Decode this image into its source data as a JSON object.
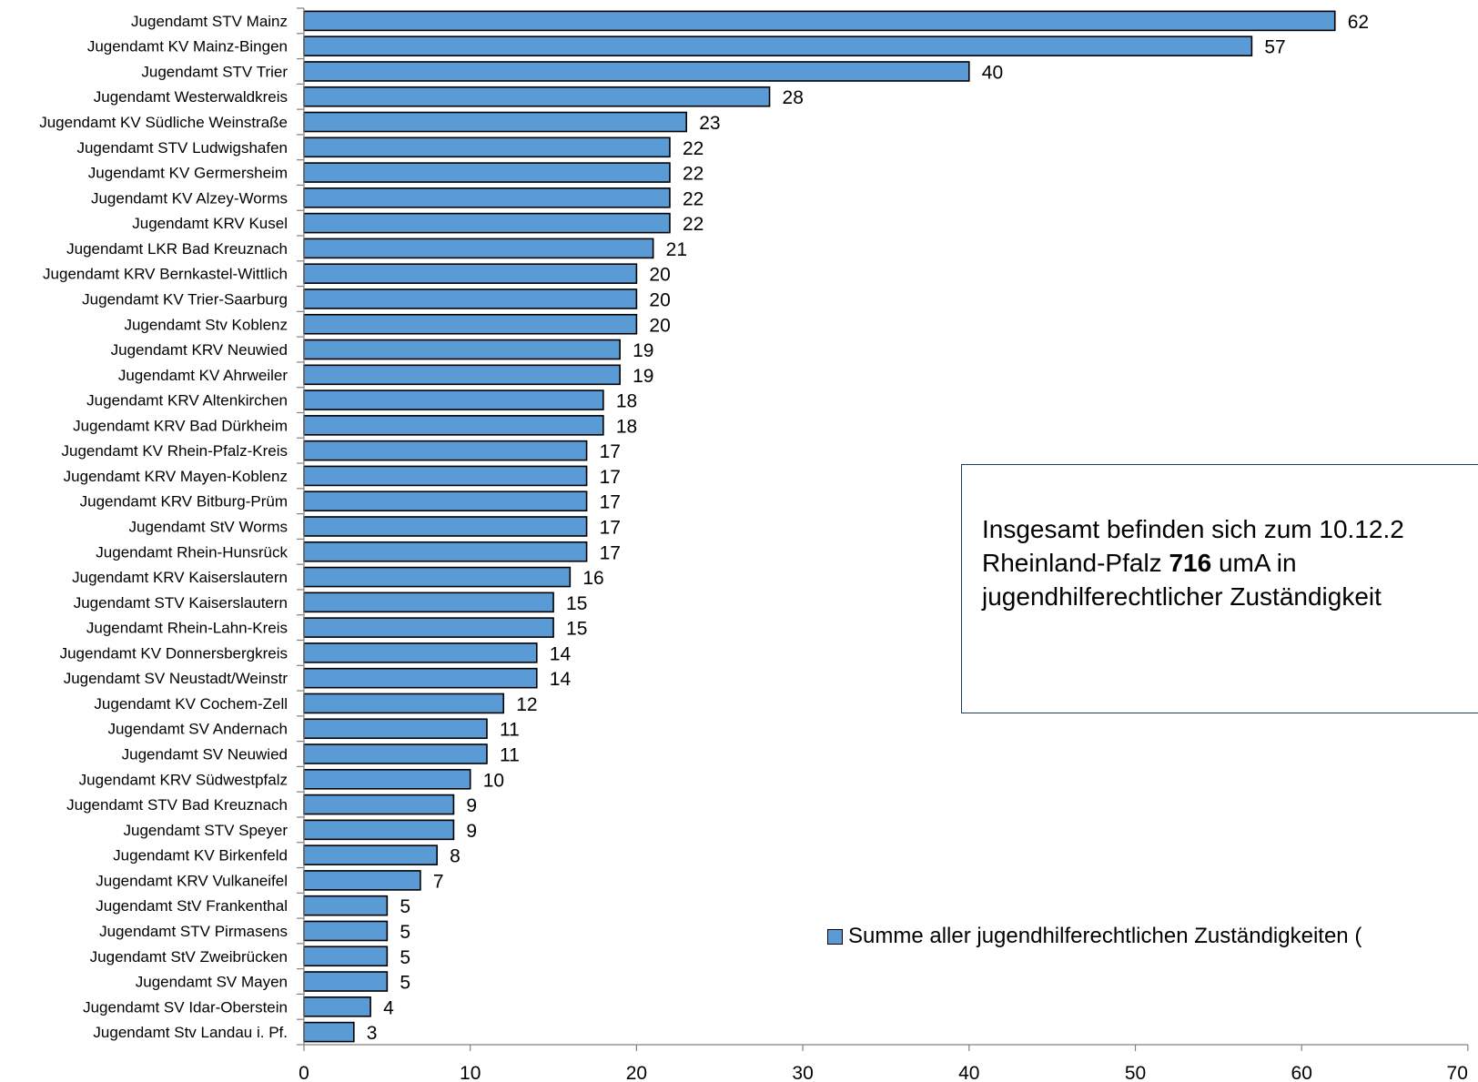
{
  "chart_data": {
    "type": "bar",
    "orientation": "horizontal",
    "categories": [
      "Jugendamt STV Mainz",
      "Jugendamt KV Mainz-Bingen",
      "Jugendamt STV Trier",
      "Jugendamt Westerwaldkreis",
      "Jugendamt KV Südliche Weinstraße",
      "Jugendamt STV Ludwigshafen",
      "Jugendamt KV Germersheim",
      "Jugendamt KV Alzey-Worms",
      "Jugendamt KRV Kusel",
      "Jugendamt LKR Bad Kreuznach",
      "Jugendamt KRV Bernkastel-Wittlich",
      "Jugendamt KV Trier-Saarburg",
      "Jugendamt Stv Koblenz",
      "Jugendamt KRV Neuwied",
      "Jugendamt KV Ahrweiler",
      "Jugendamt KRV Altenkirchen",
      "Jugendamt KRV Bad Dürkheim",
      "Jugendamt KV Rhein-Pfalz-Kreis",
      "Jugendamt KRV Mayen-Koblenz",
      "Jugendamt KRV Bitburg-Prüm",
      "Jugendamt StV Worms",
      "Jugendamt Rhein-Hunsrück",
      "Jugendamt KRV Kaiserslautern",
      "Jugendamt STV Kaiserslautern",
      "Jugendamt Rhein-Lahn-Kreis",
      "Jugendamt KV Donnersbergkreis",
      "Jugendamt SV Neustadt/Weinstr",
      "Jugendamt KV Cochem-Zell",
      "Jugendamt SV Andernach",
      "Jugendamt SV Neuwied",
      "Jugendamt KRV Südwestpfalz",
      "Jugendamt STV Bad Kreuznach",
      "Jugendamt STV Speyer",
      "Jugendamt KV Birkenfeld",
      "Jugendamt KRV Vulkaneifel",
      "Jugendamt StV Frankenthal",
      "Jugendamt STV Pirmasens",
      "Jugendamt StV Zweibrücken",
      "Jugendamt SV Mayen",
      "Jugendamt SV Idar-Oberstein",
      "Jugendamt Stv Landau i. Pf."
    ],
    "series": [
      {
        "name": "Summe aller jugendhilferechtlichen Zuständigkeiten (",
        "values": [
          62,
          57,
          40,
          28,
          23,
          22,
          22,
          22,
          22,
          21,
          20,
          20,
          20,
          19,
          19,
          18,
          18,
          17,
          17,
          17,
          17,
          17,
          16,
          15,
          15,
          14,
          14,
          12,
          11,
          11,
          10,
          9,
          9,
          8,
          7,
          5,
          5,
          5,
          5,
          4,
          3
        ]
      }
    ],
    "xlim": [
      0,
      70
    ],
    "xticks": [
      0,
      10,
      20,
      30,
      40,
      50,
      60,
      70
    ],
    "bar_color": "#5b9bd5",
    "grid": false,
    "legend_position": "bottom-right",
    "title": "",
    "xlabel": "",
    "ylabel": ""
  },
  "annotation": {
    "line1": "Insgesamt befinden sich zum 10.12.2",
    "line2_prefix": "Rheinland-Pfalz ",
    "line2_bold": "716",
    "line2_suffix": " umA in",
    "line3": "jugendhilferechtlicher Zuständigkeit"
  }
}
